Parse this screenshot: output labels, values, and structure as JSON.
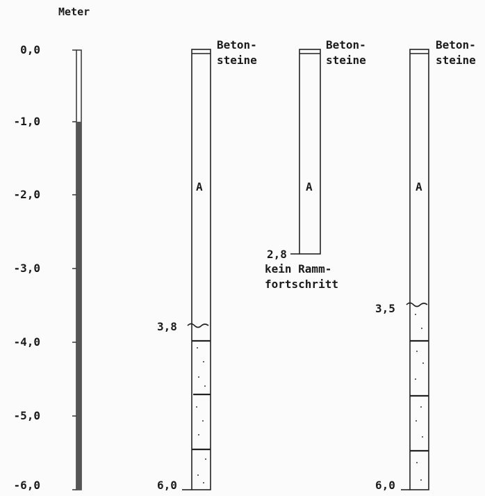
{
  "diagram": {
    "unit_label": "Meter",
    "axis_ticks": [
      "0,0",
      "-1,0",
      "-2,0",
      "-3,0",
      "-4,0",
      "-5,0",
      "-6,0"
    ],
    "columns": [
      {
        "top_label_1": "Beton-",
        "top_label_2": "steine",
        "layer_label": "A",
        "transition_label": "3,8",
        "bottom_label": "6,0"
      },
      {
        "top_label_1": "Beton-",
        "top_label_2": "steine",
        "layer_label": "A",
        "end_label": "2,8",
        "note_1": "kein Ramm-",
        "note_2": "fortschritt"
      },
      {
        "top_label_1": "Beton-",
        "top_label_2": "steine",
        "layer_label": "A",
        "transition_label": "3,5",
        "bottom_label": "6,0"
      }
    ]
  }
}
